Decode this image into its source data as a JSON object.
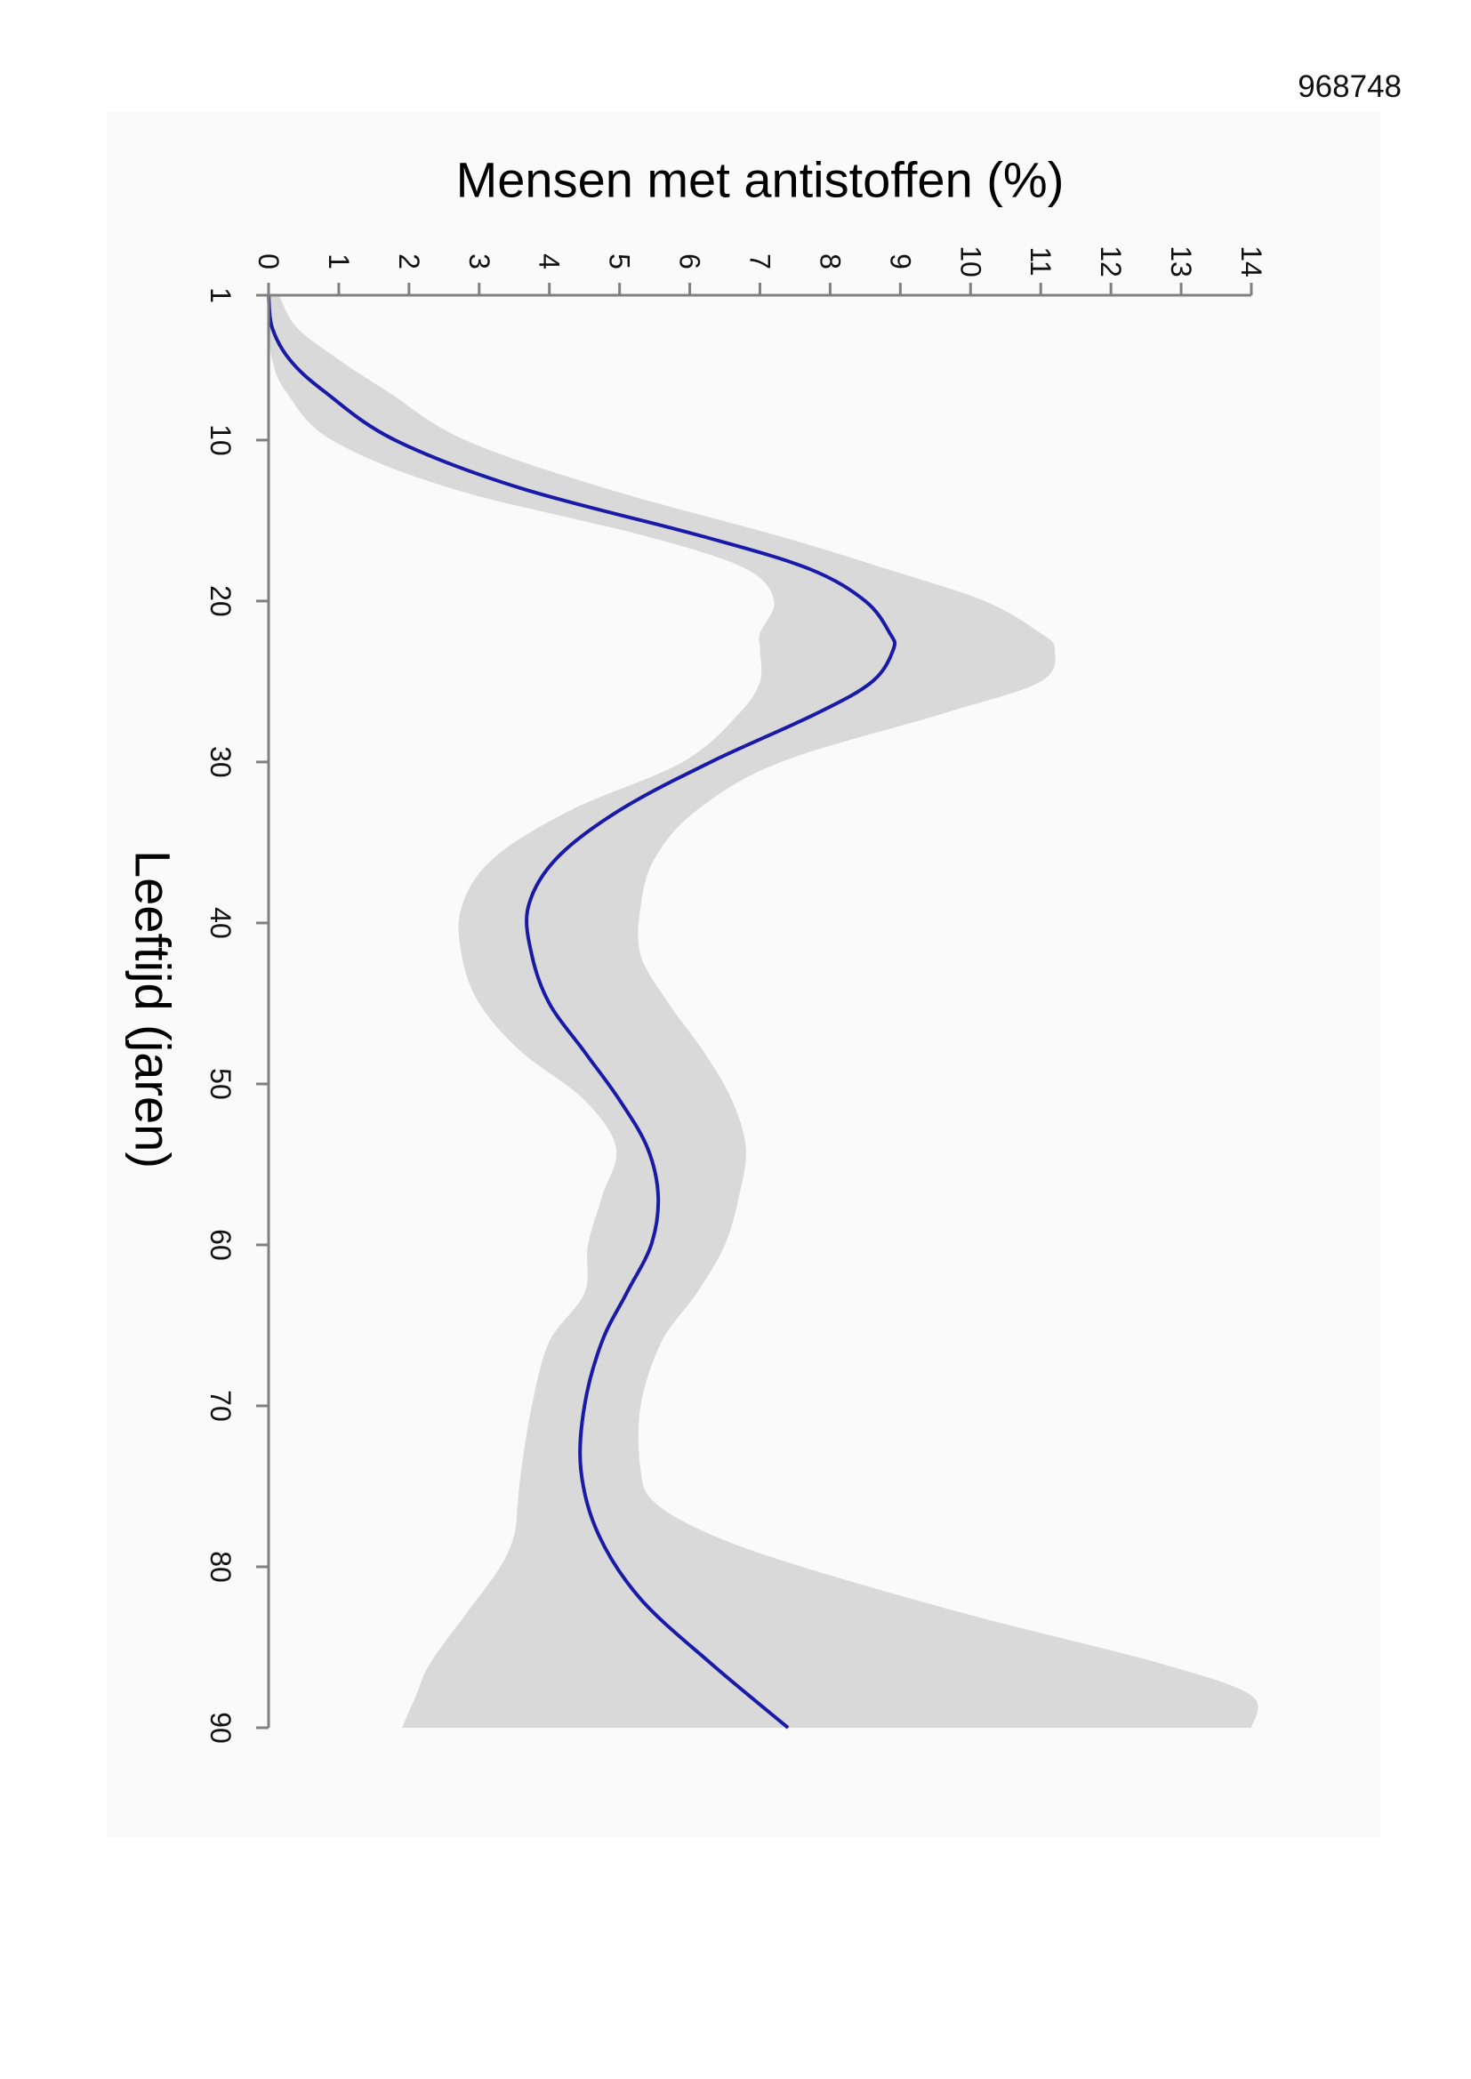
{
  "document": {
    "id": "968748"
  },
  "chart_data": {
    "type": "line",
    "orientation": "rotated 90° clockwise (age runs down the page, percentage runs left-to-right)",
    "title": "",
    "xlabel": "Leeftijd (jaren)",
    "ylabel": "Mensen met antistoffen (%)",
    "xlim": [
      1,
      90
    ],
    "ylim": [
      0,
      14
    ],
    "x_ticks": [
      "1",
      "10",
      "20",
      "30",
      "40",
      "50",
      "60",
      "70",
      "80",
      "90"
    ],
    "y_ticks": [
      "0",
      "1",
      "2",
      "3",
      "4",
      "5",
      "6",
      "7",
      "8",
      "9",
      "10",
      "11",
      "12",
      "13",
      "14"
    ],
    "grid": false,
    "legend": "none",
    "colors": {
      "line": "#1a1aa8",
      "band": "#d9d9d9",
      "axis": "#808080"
    },
    "series": [
      {
        "x": [
          1,
          3,
          5,
          7,
          10,
          13,
          16,
          18,
          20,
          22,
          23,
          25,
          27,
          30,
          33,
          36,
          39,
          42,
          45,
          48,
          51,
          54,
          57,
          60,
          63,
          66,
          70,
          74,
          78,
          82,
          86,
          90
        ],
        "y": [
          0.0,
          0.05,
          0.3,
          0.8,
          1.8,
          3.6,
          6.2,
          7.7,
          8.5,
          8.85,
          8.9,
          8.6,
          7.8,
          6.3,
          5.0,
          4.1,
          3.7,
          3.75,
          4.0,
          4.5,
          5.0,
          5.4,
          5.55,
          5.45,
          5.1,
          4.75,
          4.5,
          4.45,
          4.7,
          5.3,
          6.3,
          7.4
        ]
      }
    ],
    "confidence_band": {
      "x": [
        1,
        3,
        5,
        7,
        10,
        13,
        16,
        18,
        20,
        22,
        23,
        25,
        27,
        30,
        33,
        36,
        39,
        42,
        45,
        48,
        51,
        54,
        57,
        60,
        63,
        66,
        70,
        74,
        76,
        78,
        80,
        83,
        86,
        88,
        90
      ],
      "lower": [
        0.0,
        0.0,
        0.05,
        0.25,
        0.9,
        2.6,
        5.4,
        6.8,
        7.2,
        7.0,
        7.0,
        7.0,
        6.7,
        5.9,
        4.3,
        3.2,
        2.75,
        2.75,
        3.0,
        3.6,
        4.5,
        4.95,
        4.75,
        4.55,
        4.5,
        4.0,
        3.75,
        3.6,
        3.55,
        3.5,
        3.3,
        2.8,
        2.3,
        2.1,
        1.9
      ],
      "upper": [
        0.15,
        0.4,
        1.0,
        1.7,
        2.8,
        4.8,
        7.3,
        8.8,
        10.2,
        11.0,
        11.2,
        11.0,
        9.6,
        7.3,
        6.1,
        5.5,
        5.3,
        5.3,
        5.7,
        6.2,
        6.6,
        6.8,
        6.7,
        6.5,
        6.1,
        5.6,
        5.3,
        5.3,
        5.5,
        6.3,
        7.6,
        10.0,
        12.7,
        14.0,
        14.0
      ]
    }
  }
}
